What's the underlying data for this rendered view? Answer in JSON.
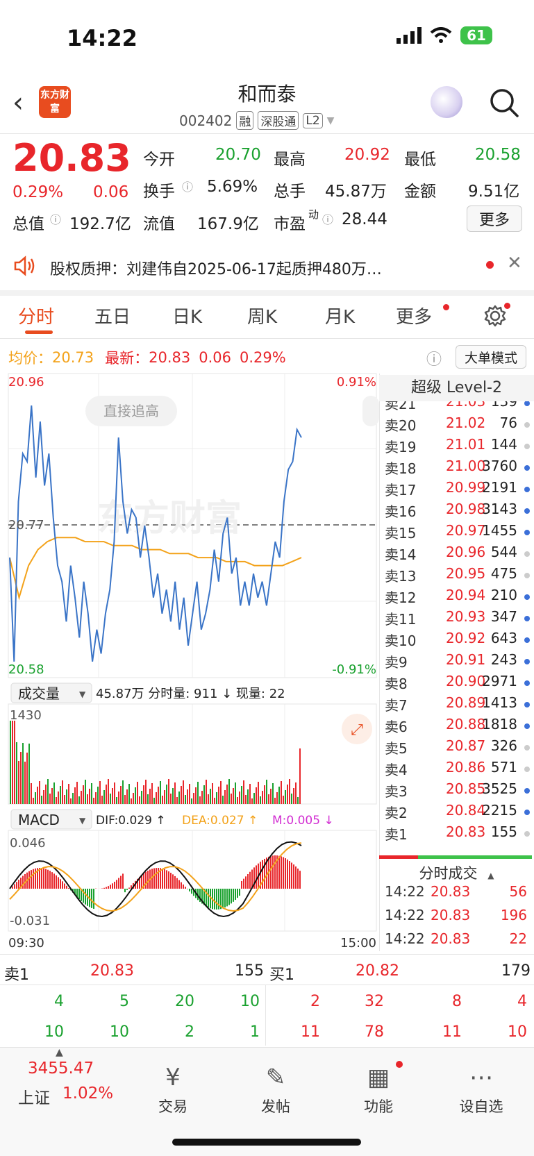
{
  "status": {
    "time": "14:22",
    "battery": "61"
  },
  "header": {
    "logo_text": "东方财富",
    "name": "和而泰",
    "code": "002402",
    "tags": [
      "融",
      "深股通",
      "L2"
    ]
  },
  "quote": {
    "price": "20.83",
    "change_pct": "0.29%",
    "change": "0.06",
    "open_label": "今开",
    "open": "20.70",
    "high_label": "最高",
    "high": "20.92",
    "low_label": "最低",
    "low": "20.58",
    "turnover_label": "换手",
    "turnover": "5.69%",
    "volume_label": "总手",
    "volume": "45.87万",
    "amount_label": "金额",
    "amount": "9.51亿",
    "mktcap_label": "总值",
    "mktcap": "192.7亿",
    "float_label": "流值",
    "float": "167.9亿",
    "pe_label": "市盈",
    "pe_sup": "动",
    "pe": "28.44",
    "more_label": "更多"
  },
  "notice": {
    "text": "股权质押：刘建伟自2025-06-17起质押480万…"
  },
  "tabs": [
    "分时",
    "五日",
    "日K",
    "周K",
    "月K",
    "更多"
  ],
  "info": {
    "avg_label": "均价：",
    "avg": "20.73",
    "latest_label": "最新：",
    "latest": "20.83",
    "latest_chg": "0.06",
    "latest_pct": "0.29%",
    "mode_label": "大单模式"
  },
  "chart": {
    "y_max": "20.96",
    "y_min": "20.58",
    "y_ref": "20.77",
    "pct_max": "0.91%",
    "pct_min": "-0.91%",
    "chase_label": "直接追高",
    "watermark": "东方财富",
    "vol_selector": "成交量",
    "vol_total": "45.87万",
    "vol_minute_label": "分时量:",
    "vol_minute": "911",
    "vol_now_label": "现量:",
    "vol_now": "22",
    "vol_max": "1430",
    "macd_selector": "MACD",
    "dif": "DIF:0.029 ↑",
    "dea": "DEA:0.027 ↑",
    "m": "M:0.005 ↓",
    "macd_max": "0.046",
    "macd_min": "-0.031",
    "time_start": "09:30",
    "time_end": "15:00"
  },
  "chart_data": {
    "type": "line",
    "ylim": [
      20.58,
      20.96
    ],
    "ref_price": 20.77,
    "series": [
      {
        "values": [
          20.73,
          20.6,
          20.8,
          20.86,
          20.85,
          20.92,
          20.83,
          20.9,
          20.82,
          20.86,
          20.78,
          20.72,
          20.7,
          20.65,
          20.72,
          20.68,
          20.63,
          20.7,
          20.66,
          20.6,
          20.64,
          20.61,
          20.66,
          20.69,
          20.75,
          20.88,
          20.8,
          20.76,
          20.79,
          20.78,
          20.73,
          20.77,
          20.73,
          20.68,
          20.71,
          20.66,
          20.69,
          20.65,
          20.7,
          20.64,
          20.68,
          20.62,
          20.66,
          20.7,
          20.64,
          20.66,
          20.69,
          20.74,
          20.7,
          20.76,
          20.78,
          20.71,
          20.73,
          20.67,
          20.7,
          20.67,
          20.71,
          20.68,
          20.7,
          20.67,
          20.71,
          20.75,
          20.73,
          20.8,
          20.84,
          20.85,
          20.89,
          20.88
        ]
      },
      {
        "values": [
          20.73,
          20.68,
          20.72,
          20.74,
          20.75,
          20.755,
          20.755,
          20.755,
          20.75,
          20.75,
          20.75,
          20.745,
          20.745,
          20.745,
          20.74,
          20.74,
          20.74,
          20.735,
          20.735,
          20.735,
          20.73,
          20.73,
          20.73,
          20.725,
          20.725,
          20.725,
          20.72,
          20.72,
          20.72,
          20.72,
          20.725,
          20.73
        ]
      }
    ]
  },
  "level2": {
    "title": "超级 Level-2",
    "asks": [
      {
        "label": "卖21",
        "price": "21.03",
        "vol": "139",
        "dot": "#3b6fd8"
      },
      {
        "label": "卖20",
        "price": "21.02",
        "vol": "76",
        "dot": "#cccccc"
      },
      {
        "label": "卖19",
        "price": "21.01",
        "vol": "144",
        "dot": "#cccccc"
      },
      {
        "label": "卖18",
        "price": "21.00",
        "vol": "3760",
        "dot": "#3b6fd8"
      },
      {
        "label": "卖17",
        "price": "20.99",
        "vol": "2191",
        "dot": "#3b6fd8"
      },
      {
        "label": "卖16",
        "price": "20.98",
        "vol": "3143",
        "dot": "#3b6fd8"
      },
      {
        "label": "卖15",
        "price": "20.97",
        "vol": "1455",
        "dot": "#3b6fd8"
      },
      {
        "label": "卖14",
        "price": "20.96",
        "vol": "544",
        "dot": "#cccccc"
      },
      {
        "label": "卖13",
        "price": "20.95",
        "vol": "475",
        "dot": "#cccccc"
      },
      {
        "label": "卖12",
        "price": "20.94",
        "vol": "210",
        "dot": "#3b6fd8"
      },
      {
        "label": "卖11",
        "price": "20.93",
        "vol": "347",
        "dot": "#3b6fd8"
      },
      {
        "label": "卖10",
        "price": "20.92",
        "vol": "643",
        "dot": "#3b6fd8"
      },
      {
        "label": "卖9",
        "price": "20.91",
        "vol": "243",
        "dot": "#3b6fd8"
      },
      {
        "label": "卖8",
        "price": "20.90",
        "vol": "2971",
        "dot": "#3b6fd8"
      },
      {
        "label": "卖7",
        "price": "20.89",
        "vol": "1413",
        "dot": "#3b6fd8"
      },
      {
        "label": "卖6",
        "price": "20.88",
        "vol": "1818",
        "dot": "#3b6fd8"
      },
      {
        "label": "卖5",
        "price": "20.87",
        "vol": "326",
        "dot": "#cccccc"
      },
      {
        "label": "卖4",
        "price": "20.86",
        "vol": "571",
        "dot": "#cccccc"
      },
      {
        "label": "卖3",
        "price": "20.85",
        "vol": "3525",
        "dot": "#3b6fd8"
      },
      {
        "label": "卖2",
        "price": "20.84",
        "vol": "2215",
        "dot": "#3b6fd8"
      },
      {
        "label": "卖1",
        "price": "20.83",
        "vol": "155",
        "dot": "#cccccc"
      }
    ],
    "trades_title": "分时成交",
    "trades": [
      {
        "time": "14:22",
        "price": "20.83",
        "vol": "56"
      },
      {
        "time": "14:22",
        "price": "20.83",
        "vol": "196"
      },
      {
        "time": "14:22",
        "price": "20.83",
        "vol": "22"
      }
    ]
  },
  "orderbook": {
    "sell_label": "卖1",
    "sell_price": "20.83",
    "sell_vol": "155",
    "buy_label": "买1",
    "buy_price": "20.82",
    "buy_vol": "179",
    "sell_queue": [
      [
        "4",
        "5",
        "20",
        "10"
      ],
      [
        "10",
        "10",
        "2",
        "1"
      ]
    ],
    "buy_queue": [
      [
        "2",
        "32",
        "8",
        "4"
      ],
      [
        "11",
        "78",
        "11",
        "10"
      ]
    ]
  },
  "bottom": {
    "index_value": "3455.47",
    "index_name": "上证",
    "index_pct": "1.02%",
    "nav": [
      "交易",
      "发帖",
      "功能",
      "设自选"
    ]
  }
}
